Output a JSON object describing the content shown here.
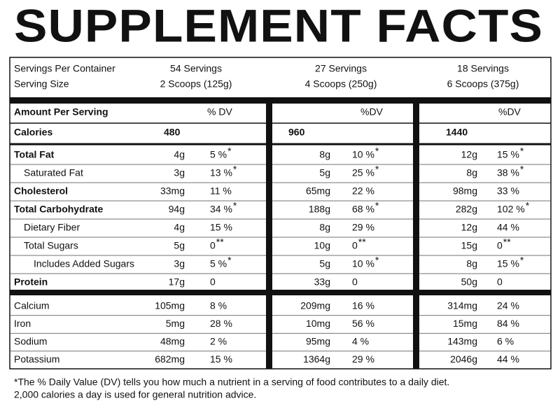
{
  "title": "SUPPLEMENT FACTS",
  "header": {
    "servings_label": "Servings Per Container",
    "size_label": "Serving Size",
    "servings": [
      "54 Servings",
      "27 Servings",
      "18 Servings"
    ],
    "sizes": [
      "2 Scoops (125g)",
      "4 Scoops (250g)",
      "6 Scoops (375g)"
    ]
  },
  "table": {
    "amount_label": "Amount Per Serving",
    "dv_headers": [
      "% DV",
      "%DV",
      "%DV"
    ],
    "calories": {
      "label": "Calories",
      "values": [
        "480",
        "960",
        "1440"
      ]
    },
    "rows": [
      {
        "label": "Total Fat",
        "cells": [
          {
            "amount": "4g",
            "dv": "5 %",
            "mark": "*"
          },
          {
            "amount": "8g",
            "dv": "10 %",
            "mark": "*"
          },
          {
            "amount": "12g",
            "dv": "15 %",
            "mark": "*"
          }
        ]
      },
      {
        "label": "Saturated Fat",
        "cells": [
          {
            "amount": "3g",
            "dv": "13 %",
            "mark": "*"
          },
          {
            "amount": "5g",
            "dv": "25 %",
            "mark": "*"
          },
          {
            "amount": "8g",
            "dv": "38 %",
            "mark": "*"
          }
        ]
      },
      {
        "label": "Cholesterol",
        "cells": [
          {
            "amount": "33mg",
            "dv": "11 %"
          },
          {
            "amount": "65mg",
            "dv": "22 %"
          },
          {
            "amount": "98mg",
            "dv": "33 %"
          }
        ]
      },
      {
        "label": "Total Carbohydrate",
        "cells": [
          {
            "amount": "94g",
            "dv": "34 %",
            "mark": "*"
          },
          {
            "amount": "188g",
            "dv": "68 %",
            "mark": "*"
          },
          {
            "amount": "282g",
            "dv": "102 %",
            "mark": "*"
          }
        ]
      },
      {
        "label": "Dietary Fiber",
        "cells": [
          {
            "amount": "4g",
            "dv": "15 %"
          },
          {
            "amount": "8g",
            "dv": "29 %"
          },
          {
            "amount": "12g",
            "dv": "44 %"
          }
        ]
      },
      {
        "label": "Total Sugars",
        "cells": [
          {
            "amount": "5g",
            "dv": "0",
            "mark": "**"
          },
          {
            "amount": "10g",
            "dv": "0",
            "mark": "**"
          },
          {
            "amount": "15g",
            "dv": "0",
            "mark": "**"
          }
        ]
      },
      {
        "label": "Includes Added Sugars",
        "cells": [
          {
            "amount": "3g",
            "dv": "5 %",
            "mark": "*"
          },
          {
            "amount": "5g",
            "dv": "10 %",
            "mark": "*"
          },
          {
            "amount": "8g",
            "dv": "15 %",
            "mark": "*"
          }
        ]
      },
      {
        "label": "Protein",
        "cells": [
          {
            "amount": "17g",
            "dv": "0"
          },
          {
            "amount": "33g",
            "dv": "0"
          },
          {
            "amount": "50g",
            "dv": "0"
          }
        ]
      }
    ],
    "minerals": [
      {
        "label": "Calcium",
        "cells": [
          {
            "amount": "105mg",
            "dv": "8 %"
          },
          {
            "amount": "209mg",
            "dv": "16 %"
          },
          {
            "amount": "314mg",
            "dv": "24 %"
          }
        ]
      },
      {
        "label": "Iron",
        "cells": [
          {
            "amount": "5mg",
            "dv": "28 %"
          },
          {
            "amount": "10mg",
            "dv": "56 %"
          },
          {
            "amount": "15mg",
            "dv": "84 %"
          }
        ]
      },
      {
        "label": "Sodium",
        "cells": [
          {
            "amount": "48mg",
            "dv": "2 %"
          },
          {
            "amount": "95mg",
            "dv": "4 %"
          },
          {
            "amount": "143mg",
            "dv": "6 %"
          }
        ]
      },
      {
        "label": "Potassium",
        "cells": [
          {
            "amount": "682mg",
            "dv": "15 %"
          },
          {
            "amount": "1364g",
            "dv": "29 %"
          },
          {
            "amount": "2046g",
            "dv": "44 %"
          }
        ]
      }
    ]
  },
  "footnote": [
    "*The % Daily Value (DV) tells you how much a nutrient in a serving of food contributes to a daily diet.",
    "2,000 calories a day is used for general nutrition advice."
  ]
}
